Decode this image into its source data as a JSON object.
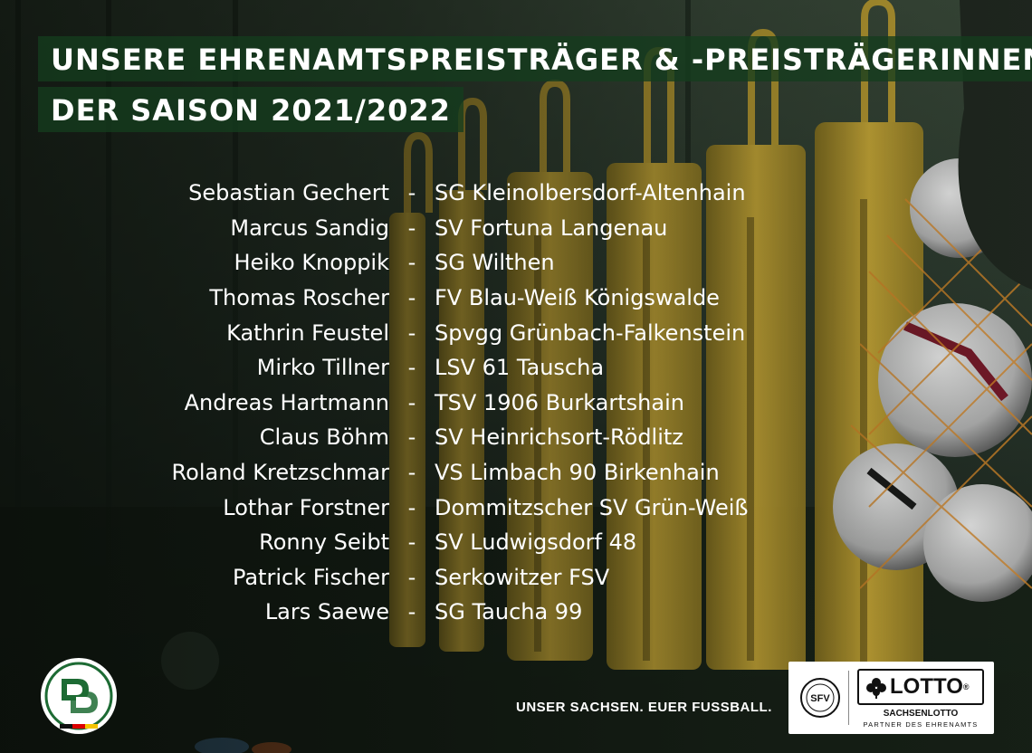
{
  "headline": {
    "line1": "UNSERE EHRENAMTSPREISTRÄGER & -PREISTRÄGERINNEN",
    "line2": "DER SAISON 2021/2022"
  },
  "separator": "-",
  "honorees": [
    {
      "name": "Sebastian Gechert",
      "club": "SG Kleinolbersdorf-Altenhain"
    },
    {
      "name": "Marcus Sandig",
      "club": "SV Fortuna Langenau"
    },
    {
      "name": "Heiko Knoppik",
      "club": "SG Wilthen"
    },
    {
      "name": "Thomas Roscher",
      "club": "FV Blau-Weiß Königswalde"
    },
    {
      "name": "Kathrin Feustel",
      "club": "Spvgg Grünbach-Falkenstein"
    },
    {
      "name": "Mirko Tillner",
      "club": "LSV 61 Tauscha"
    },
    {
      "name": "Andreas Hartmann",
      "club": "TSV 1906 Burkartshain"
    },
    {
      "name": "Claus Böhm",
      "club": "SV Heinrichsort-Rödlitz"
    },
    {
      "name": "Roland Kretzschmar",
      "club": "VS Limbach 90 Birkenhain"
    },
    {
      "name": "Lothar Forstner",
      "club": "Dommitzscher SV Grün-Weiß"
    },
    {
      "name": "Ronny Seibt",
      "club": "SV Ludwigsdorf 48"
    },
    {
      "name": "Patrick Fischer",
      "club": "Serkowitzer FSV"
    },
    {
      "name": "Lars Saewe",
      "club": "SG Taucha 99"
    }
  ],
  "footer": {
    "slogan": "UNSER SACHSEN. EUER FUSSBALL.",
    "lotto_word": "LOTTO",
    "lotto_reg": "®",
    "lotto_sub": "SACHSENLOTTO",
    "lotto_tag": "PARTNER DES EHRENAMTS",
    "sfv_mark": "SFV"
  },
  "icons": {
    "dfb_logo": "dfb-logo",
    "sfv_logo": "sfv-logo",
    "lotto_clover": "clover-icon"
  },
  "colors": {
    "headline_band": "#143c1e",
    "mannequin_yellow": "#d9b53a",
    "text": "#ffffff"
  }
}
